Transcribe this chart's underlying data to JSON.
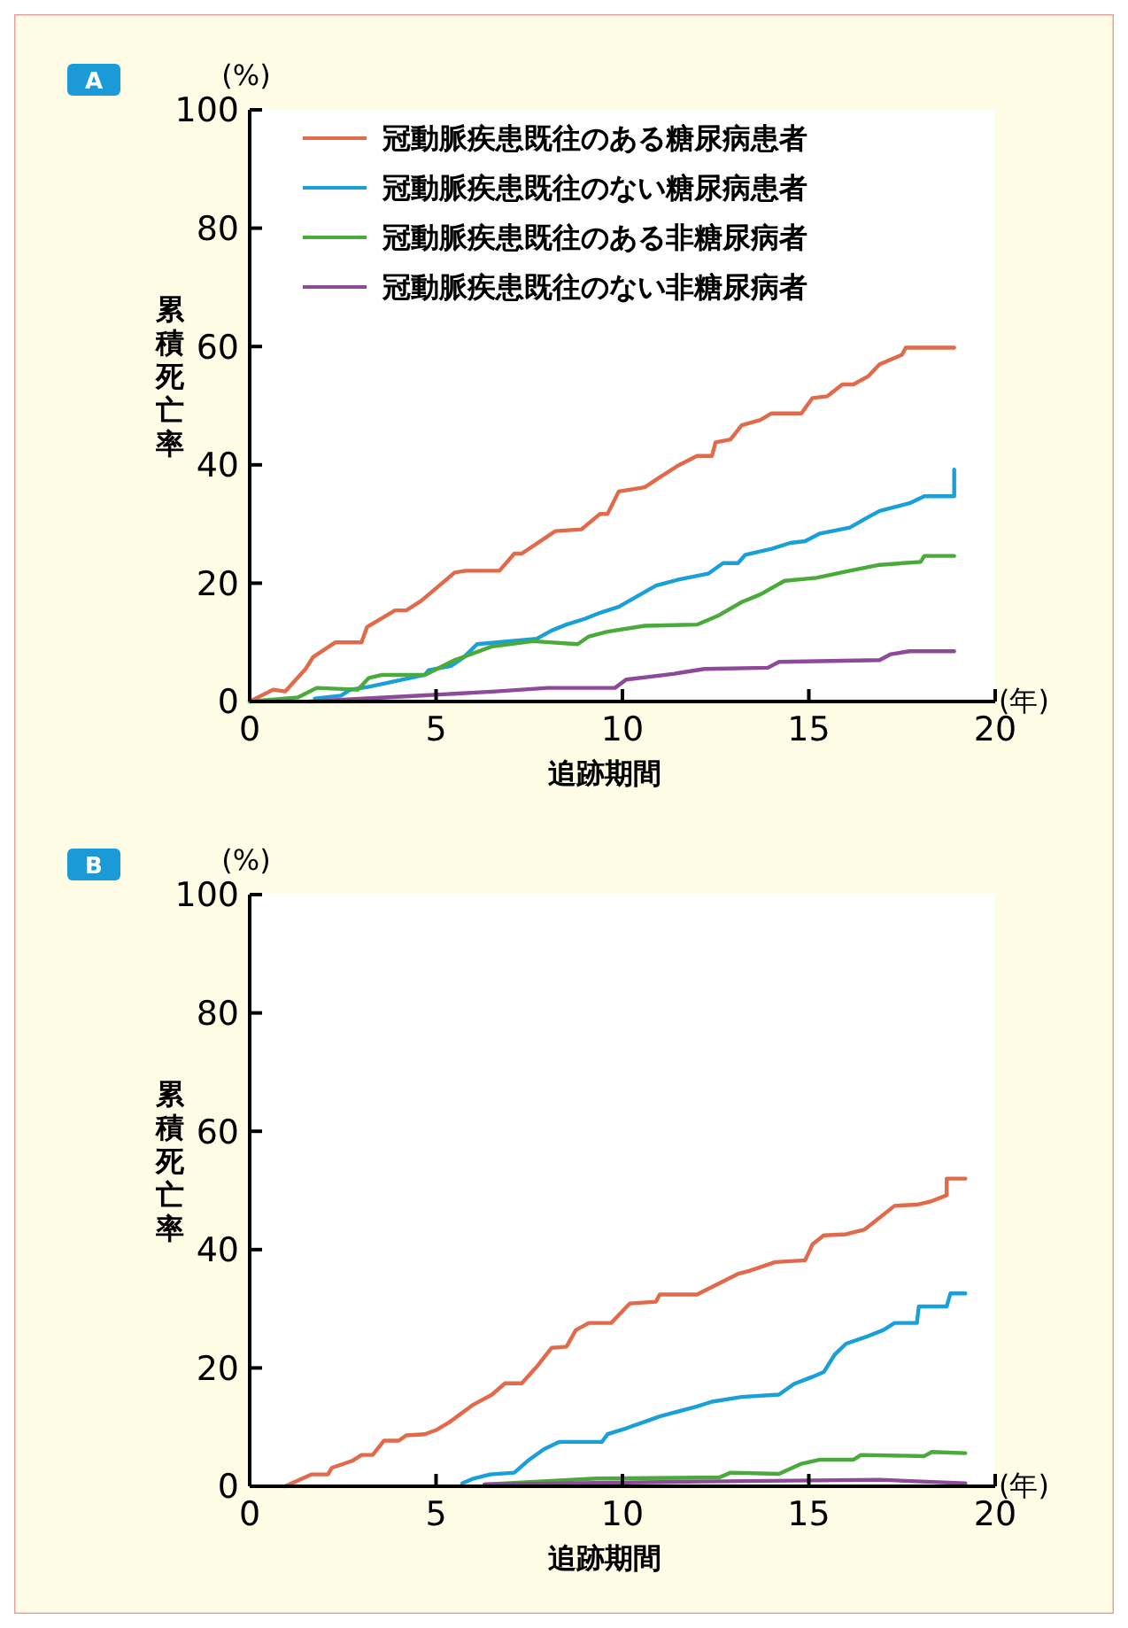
{
  "chart_data": [
    {
      "type": "line",
      "title": "A",
      "xlabel": "追跡期間",
      "ylabel": "累積死亡率",
      "annotations": [
        "(%)",
        "(年)"
      ],
      "xlim": [
        0,
        20
      ],
      "xticks": [
        0,
        5,
        10,
        15,
        20
      ],
      "ylim": [
        0,
        100
      ],
      "yticks": [
        0,
        20,
        40,
        60,
        80,
        100
      ],
      "legend": "top",
      "grid": false,
      "marker": "none",
      "line_style": "solid",
      "series": [
        {
          "name": "冠動脈疾患既往のある糖尿病患者",
          "color": "#e06a4a",
          "x": [
            0,
            0.63,
            0.95,
            1.5,
            1.7,
            2.3,
            3,
            3.15,
            3.9,
            4.2,
            4.6,
            5.5,
            5.8,
            6.7,
            7.1,
            7.3,
            8.2,
            8.9,
            9.4,
            9.6,
            9.9,
            10.6,
            11,
            11.5,
            12,
            12.4,
            12.5,
            12.9,
            13.2,
            13.7,
            14,
            14.8,
            15.1,
            15.5,
            15.9,
            16.2,
            16.6,
            16.9,
            17.5,
            17.6,
            18.9
          ],
          "values": [
            0,
            2,
            1.7,
            5.5,
            7.5,
            10,
            10,
            12.6,
            15.4,
            15.4,
            17,
            21.8,
            22.1,
            22.1,
            25,
            25,
            28.8,
            29.1,
            31.7,
            31.7,
            35.5,
            36.2,
            37.9,
            39.9,
            41.5,
            41.5,
            43.8,
            44.3,
            46.7,
            47.6,
            48.7,
            48.7,
            51.3,
            51.6,
            53.6,
            53.6,
            55,
            57,
            58.6,
            59.8,
            59.8
          ]
        },
        {
          "name": "冠動脈疾患既往のない糖尿病患者",
          "color": "#1aa0d8",
          "x": [
            1.75,
            2.45,
            2.7,
            3.2,
            3.95,
            4.7,
            4.8,
            5.4,
            5.75,
            6.1,
            7.7,
            8.1,
            8.5,
            9,
            9.4,
            9.9,
            10.4,
            10.9,
            11.5,
            12.3,
            12.7,
            13.1,
            13.3,
            14,
            14.5,
            14.9,
            15.3,
            16.1,
            16.6,
            16.9,
            17.7,
            18.1,
            18.9,
            18.9
          ],
          "values": [
            0.5,
            1,
            2,
            2.5,
            3.5,
            4.5,
            5.3,
            6,
            7.5,
            9.7,
            10.6,
            12,
            13,
            14,
            15,
            16,
            17.8,
            19.6,
            20.6,
            21.6,
            23.4,
            23.4,
            24.8,
            25.8,
            26.8,
            27.1,
            28.4,
            29.4,
            31.2,
            32.2,
            33.5,
            34.7,
            34.7,
            39.2
          ]
        },
        {
          "name": "冠動脈疾患既往のある非糖尿病者",
          "color": "#4aaa3a",
          "x": [
            0,
            1.3,
            1.8,
            2.9,
            3.2,
            3.55,
            4.7,
            5.5,
            6.5,
            7.6,
            8.8,
            9.1,
            9.6,
            10.6,
            12,
            12.6,
            13.2,
            13.7,
            14.35,
            15.2,
            16.1,
            16.9,
            18,
            18.1,
            18.9
          ],
          "values": [
            0,
            0.7,
            2.3,
            2,
            4,
            4.5,
            4.5,
            7,
            9.3,
            10.2,
            9.7,
            11,
            11.8,
            12.8,
            13,
            14.6,
            16.8,
            18.1,
            20.4,
            20.9,
            22.1,
            23.1,
            23.6,
            24.6,
            24.6
          ]
        },
        {
          "name": "冠動脈疾患既往のない非糖尿病者",
          "color": "#8e4a9a",
          "x": [
            1.6,
            4.6,
            6.6,
            8,
            9.8,
            10.1,
            11.4,
            12.2,
            13.9,
            14.2,
            16.9,
            17.2,
            17.7,
            18.9
          ],
          "values": [
            0,
            1,
            1.7,
            2.3,
            2.3,
            3.7,
            4.7,
            5.5,
            5.7,
            6.7,
            7,
            8,
            8.5,
            8.5
          ]
        }
      ]
    },
    {
      "type": "line",
      "title": "B",
      "xlabel": "追跡期間",
      "ylabel": "累積死亡率",
      "annotations": [
        "(%)",
        "(年)"
      ],
      "xlim": [
        0,
        20
      ],
      "xticks": [
        0,
        5,
        10,
        15,
        20
      ],
      "ylim": [
        0,
        100
      ],
      "yticks": [
        0,
        20,
        40,
        60,
        80,
        100
      ],
      "grid": false,
      "marker": "none",
      "line_style": "solid",
      "series": [
        {
          "color": "#e06a4a",
          "x": [
            0.95,
            1.65,
            2.1,
            2.2,
            2.75,
            3,
            3.3,
            3.6,
            4,
            4.2,
            4.7,
            5,
            5.35,
            6,
            6.5,
            6.85,
            7.3,
            7.7,
            8.1,
            8.5,
            8.75,
            9.1,
            9.7,
            10.2,
            10.9,
            11,
            12,
            13.1,
            13.4,
            14.1,
            14.9,
            15.1,
            15.4,
            16,
            16.5,
            17.3,
            17.9,
            18.3,
            18.7,
            18.7,
            19.2
          ],
          "values": [
            0,
            2,
            2,
            3.1,
            4.3,
            5.3,
            5.3,
            7.7,
            7.7,
            8.6,
            8.8,
            9.5,
            10.8,
            13.8,
            15.5,
            17.4,
            17.4,
            20.2,
            23.4,
            23.6,
            26.4,
            27.6,
            27.6,
            30.9,
            31.2,
            32.4,
            32.4,
            35.9,
            36.4,
            37.9,
            38.2,
            40.9,
            42.4,
            42.6,
            43.4,
            47.4,
            47.6,
            48.2,
            49.2,
            52,
            52
          ]
        },
        {
          "color": "#1aa0d8",
          "x": [
            5.7,
            6,
            6.45,
            7.1,
            7.5,
            7.9,
            8.3,
            9.45,
            9.6,
            10.1,
            10.55,
            11,
            12,
            12.4,
            13.2,
            14.2,
            14.6,
            15.1,
            15.4,
            15.7,
            16,
            16.6,
            17,
            17.3,
            17.9,
            17.95,
            18.7,
            18.8,
            19.2
          ],
          "values": [
            0.5,
            1.3,
            2,
            2.3,
            4.5,
            6.3,
            7.5,
            7.5,
            8.8,
            9.8,
            10.8,
            11.8,
            13.5,
            14.3,
            15.1,
            15.5,
            17.3,
            18.5,
            19.3,
            22.3,
            24.1,
            25.4,
            26.4,
            27.6,
            27.6,
            30.4,
            30.4,
            32.6,
            32.6
          ]
        },
        {
          "color": "#4aaa3a",
          "x": [
            6.3,
            9.3,
            12.6,
            12.9,
            14.2,
            14.8,
            15.3,
            16.2,
            16.4,
            18.1,
            18.3,
            19.2
          ],
          "values": [
            0.3,
            1.3,
            1.5,
            2.3,
            2.1,
            3.8,
            4.5,
            4.5,
            5.3,
            5.1,
            5.8,
            5.6
          ]
        },
        {
          "color": "#8e4a9a",
          "x": [
            6.3,
            12.1,
            16.9,
            19.2
          ],
          "values": [
            0.3,
            0.8,
            1.1,
            0.5
          ]
        }
      ]
    }
  ]
}
